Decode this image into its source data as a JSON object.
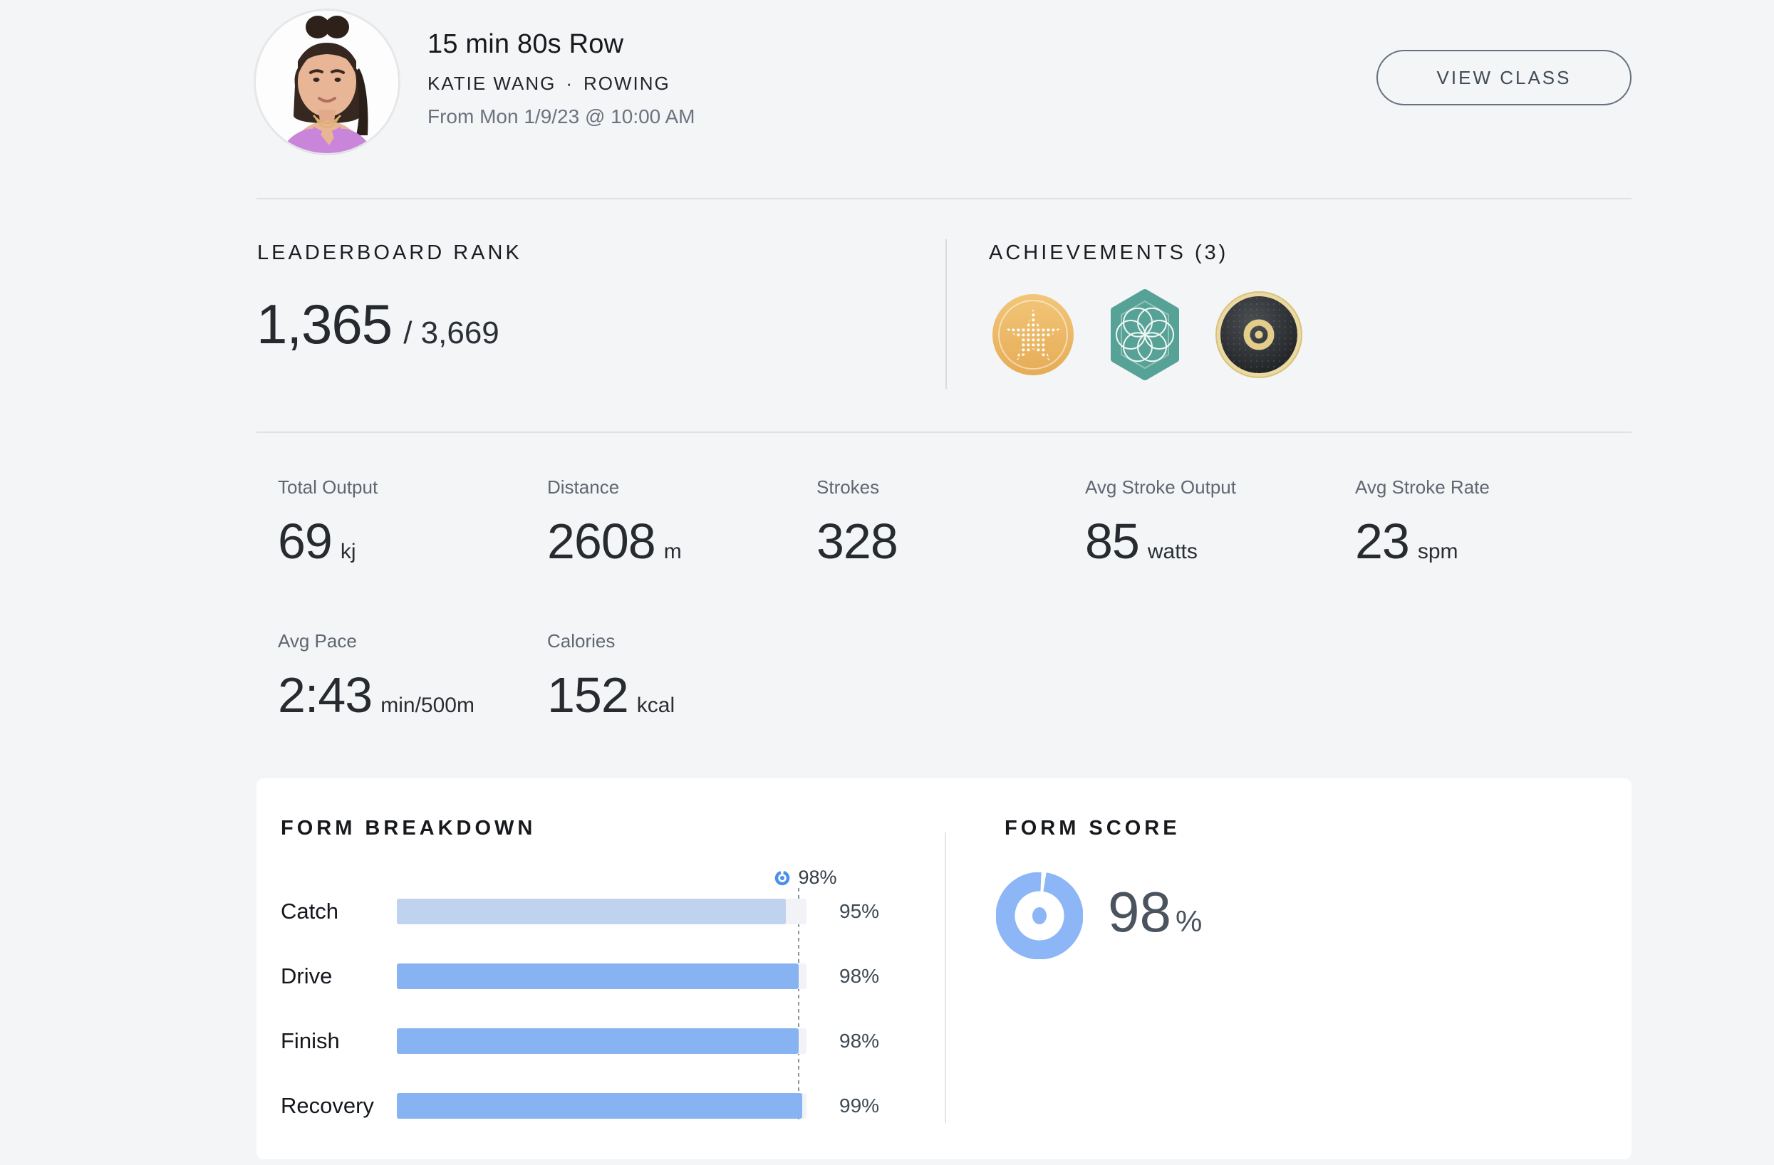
{
  "header": {
    "title": "15 min 80s Row",
    "instructor": "KATIE WANG",
    "dot": "·",
    "discipline": "ROWING",
    "date": "From Mon 1/9/23 @ 10:00 AM",
    "view_class": "VIEW CLASS"
  },
  "leaderboard": {
    "heading": "LEADERBOARD RANK",
    "rank": "1,365",
    "out_of": "/ 3,669"
  },
  "achievements": {
    "heading": "ACHIEVEMENTS (3)",
    "badges": [
      {
        "name": "gold-dotted-star-medal"
      },
      {
        "name": "teal-hexagon-flower-badge"
      },
      {
        "name": "black-gold-vinyl-record-badge"
      }
    ]
  },
  "metrics": {
    "items": [
      {
        "label": "Total Output",
        "value": "69",
        "unit": "kj"
      },
      {
        "label": "Distance",
        "value": "2608",
        "unit": "m"
      },
      {
        "label": "Strokes",
        "value": "328",
        "unit": ""
      },
      {
        "label": "Avg Stroke Output",
        "value": "85",
        "unit": "watts"
      },
      {
        "label": "Avg Stroke Rate",
        "value": "23",
        "unit": "spm"
      },
      {
        "label": "Avg Pace",
        "value": "2:43",
        "unit": "min/500m"
      },
      {
        "label": "Calories",
        "value": "152",
        "unit": "kcal"
      }
    ]
  },
  "form_breakdown": {
    "heading": "FORM BREAKDOWN",
    "marker_percent": 98,
    "marker_label": "98%",
    "rows": [
      {
        "label": "Catch",
        "percent": 95,
        "display": "95%"
      },
      {
        "label": "Drive",
        "percent": 98,
        "display": "98%"
      },
      {
        "label": "Finish",
        "percent": 98,
        "display": "98%"
      },
      {
        "label": "Recovery",
        "percent": 99,
        "display": "99%"
      }
    ]
  },
  "form_score": {
    "heading": "FORM SCORE",
    "percent": 98,
    "value": "98",
    "unit": "%"
  },
  "colors": {
    "page_bg": "#f4f5f7",
    "card_bg": "#ffffff",
    "bar_blue": "#87b3f3",
    "bar_light_blue": "#bfd3ee",
    "bar_track": "#f1f3f6",
    "donut_blue": "#8cb6f6",
    "marker_blue": "#4b90ea",
    "badge_gold": "#ecba66",
    "badge_teal": "#57a296",
    "vinyl_gold": "#e3cd8b"
  },
  "chart_data": [
    {
      "type": "bar",
      "orientation": "horizontal",
      "title": "FORM BREAKDOWN",
      "categories": [
        "Catch",
        "Drive",
        "Finish",
        "Recovery"
      ],
      "values": [
        95,
        98,
        98,
        99
      ],
      "unit": "%",
      "xlim": [
        0,
        100
      ],
      "grid": false,
      "reference_line": {
        "value": 98,
        "label": "98%",
        "style": "dotted"
      }
    },
    {
      "type": "pie",
      "variant": "donut",
      "title": "FORM SCORE",
      "value": 98,
      "max": 100,
      "label": "98%"
    }
  ]
}
